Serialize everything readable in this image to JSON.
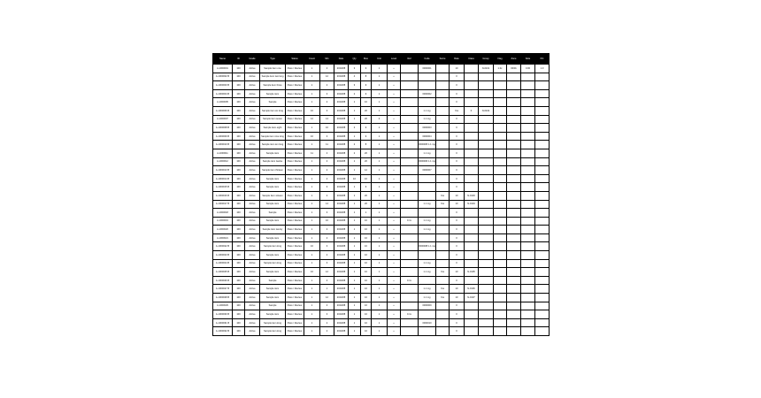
{
  "table": {
    "header": [
      "Name",
      "ID",
      "Grade",
      "Type",
      "Status",
      "Count",
      "Min",
      "Date",
      "Qty",
      "Max",
      "Unit",
      "Level",
      "Ref",
      "Code",
      "Score",
      "Rate",
      "Class",
      "Group",
      "Flag",
      "Zone",
      "Note",
      "Pct"
    ],
    "rows": [
      [
        "A-1000001",
        "100",
        "Active",
        "Sample item one",
        "Pass / Review",
        "1",
        "4",
        "2019/08",
        "3",
        "9",
        "1",
        "+",
        null,
        "0000001",
        null,
        "10",
        null,
        "N-0101",
        "1.0x",
        "00/01",
        "0.00",
        "1.0"
      ],
      [
        "A-1000002 B",
        "100",
        "Active",
        "Sample item two long",
        "Pass / Review",
        "1",
        "12",
        "2019/08",
        "4",
        "8",
        "1",
        "+",
        null,
        null,
        null,
        "0",
        null,
        null,
        null,
        null,
        null,
        null
      ],
      [
        "A-1000003 B",
        "100",
        "Active",
        "Sample item three",
        "Pass / Review",
        "1",
        "2",
        "2019/08",
        "3",
        "9",
        "1",
        "+",
        null,
        null,
        null,
        "0",
        null,
        null,
        null,
        null,
        null,
        null
      ],
      [
        "A-1000004 B",
        "100",
        "Active",
        "Sample item",
        "Pass / Review",
        "1",
        "3",
        "2019/08",
        "2",
        "9",
        "1",
        "+",
        null,
        "0000002",
        null,
        "0",
        null,
        null,
        null,
        null,
        null,
        null
      ],
      [
        "A-1000005",
        "100",
        "Active",
        "Sample",
        "Pass / Review",
        "1",
        "2",
        "2019/08",
        "1",
        "10",
        "1",
        "+",
        null,
        null,
        null,
        "0",
        null,
        null,
        null,
        null,
        null,
        null
      ],
      [
        "A-1000006 B",
        "100",
        "Active",
        "Sample item six long",
        "Pass / Review",
        "10",
        "3",
        "2019/08",
        "1",
        "20",
        "1",
        "+",
        null,
        "1.1 mg",
        null,
        "Yes",
        "0",
        "N-0102",
        null,
        null,
        null,
        null
      ],
      [
        "A-1000007",
        "100",
        "Active",
        "Sample item seven",
        "Pass / Review",
        "12",
        "14",
        "2019/08",
        "1",
        "20",
        "2",
        "+",
        null,
        "1.1 mg",
        null,
        "0",
        null,
        null,
        null,
        null,
        null,
        null
      ],
      [
        "A-1000008 B",
        "100",
        "Active",
        "Sample item eight",
        "Pass / Review",
        "1",
        "10",
        "2019/08",
        "2",
        "9",
        "1",
        "+",
        null,
        "0000003",
        null,
        "0",
        null,
        null,
        null,
        null,
        null,
        null
      ],
      [
        "A-1000009 B",
        "100",
        "Active",
        "Sample item nine long",
        "Pass / Review",
        "10",
        "3",
        "2019/08",
        "1",
        "9",
        "1",
        "+",
        null,
        "0000004",
        null,
        "0",
        null,
        null,
        null,
        null,
        null,
        null
      ],
      [
        "A-1000010 B",
        "100",
        "Active",
        "Sample item ten long",
        "Pass / Review",
        "1",
        "11",
        "2019/08",
        "2",
        "8",
        "1",
        "+",
        null,
        "0000005 1.1 mg",
        null,
        "0",
        null,
        null,
        null,
        null,
        null,
        null
      ],
      [
        "A-1000011",
        "100",
        "Active",
        "Sample item",
        "Pass / Review",
        "11",
        "4",
        "2019/08",
        "2",
        "20",
        "1",
        "+",
        null,
        "1.1 mg",
        null,
        "0",
        null,
        null,
        null,
        null,
        null,
        null
      ],
      [
        "A-1000012",
        "100",
        "Active",
        "Sample item twelve",
        "Pass / Review",
        "1",
        "4",
        "2019/08",
        "1",
        "20",
        "1",
        "+",
        null,
        "0000006 1.1 mg",
        null,
        "0",
        null,
        null,
        null,
        null,
        null,
        null
      ],
      [
        "A-1000013 B",
        "100",
        "Active",
        "Sample item thirteen",
        "Pass / Review",
        "1",
        "2",
        "2019/08",
        "1",
        "12",
        "1",
        "+",
        null,
        "0000007",
        null,
        "0",
        null,
        null,
        null,
        null,
        null,
        null
      ],
      [
        "A-1000014 B",
        "100",
        "Active",
        "Sample item",
        "Pass / Review",
        "1",
        "4",
        "2019/08",
        "10",
        "10",
        "1",
        "+",
        null,
        null,
        null,
        "0",
        null,
        null,
        null,
        null,
        null,
        null
      ],
      [
        "A-1000015 B",
        "100",
        "Active",
        "Sample item",
        "Pass / Review",
        "1",
        "3",
        "2019/08",
        "1",
        "9",
        "1",
        "+",
        null,
        null,
        null,
        "0",
        null,
        null,
        null,
        null,
        null,
        null
      ],
      [
        "A-1000016 B",
        "100",
        "Active",
        "Sample item sixteen",
        "Pass / Review",
        "1",
        "2",
        "2019/08",
        "1",
        "20",
        "1",
        "+",
        null,
        null,
        "Yes",
        "10",
        "N-0103",
        null,
        null,
        null,
        null,
        null
      ],
      [
        "A-1000017 B",
        "100",
        "Active",
        "Sample item",
        "Pass / Review",
        "1",
        "14",
        "2019/08",
        "1",
        "20",
        "1",
        "+",
        null,
        "1.1 mg",
        "Yes",
        "10",
        "N-0104",
        null,
        null,
        null,
        null,
        null
      ],
      [
        "A-1000018",
        "100",
        "Active",
        "Sample",
        "Pass / Review",
        "1",
        "3",
        "2019/08",
        "1",
        "1",
        "1",
        "+",
        null,
        null,
        null,
        "0",
        null,
        null,
        null,
        null,
        null,
        null
      ],
      [
        "A-1000019",
        "100",
        "Active",
        "Sample item",
        "Pass / Review",
        "1",
        "10",
        "2019/08",
        "1",
        "10",
        "1",
        "+",
        "0.1x",
        "1.1 mg",
        null,
        "0",
        null,
        null,
        null,
        null,
        null,
        null
      ],
      [
        "A-1000020",
        "100",
        "Active",
        "Sample item twenty",
        "Pass / Review",
        "1",
        "2",
        "2019/08",
        "1",
        "10",
        "1",
        "+",
        null,
        "1.1 mg",
        null,
        "0",
        null,
        null,
        null,
        null,
        null,
        null
      ],
      [
        "A-1000021",
        "100",
        "Active",
        "Sample item",
        "Pass / Review",
        "1",
        "4",
        "2019/08",
        "1",
        "10",
        "1",
        "+",
        null,
        null,
        null,
        "0",
        null,
        null,
        null,
        null,
        null,
        null
      ],
      [
        "A-1000022 B",
        "100",
        "Active",
        "Sample item long",
        "Pass / Review",
        "10",
        "3",
        "2019/08",
        "1",
        "10",
        "1",
        "+",
        null,
        "0000008 1.1 mg",
        null,
        "0",
        null,
        null,
        null,
        null,
        null,
        null
      ],
      [
        "A-1000023 B",
        "100",
        "Active",
        "Sample item",
        "Pass / Review",
        "1",
        "2",
        "2019/08",
        "1",
        "10",
        "1",
        "+",
        null,
        null,
        null,
        "0",
        null,
        null,
        null,
        null,
        null,
        null
      ],
      [
        "A-1000024 B",
        "100",
        "Active",
        "Sample item long",
        "Pass / Review",
        "1",
        "3",
        "2019/08",
        "1",
        "10",
        "1",
        "+",
        null,
        "1.1 mg",
        null,
        "0",
        null,
        null,
        null,
        null,
        null,
        null
      ],
      [
        "A-1000025 B",
        "100",
        "Active",
        "Sample item",
        "Pass / Review",
        "10",
        "12",
        "2019/08",
        "1",
        "10",
        "1",
        "+",
        null,
        "1.1 mg",
        "Yes",
        "10",
        "N-0105",
        null,
        null,
        null,
        null,
        null
      ],
      [
        "A-1000026 B",
        "100",
        "Active",
        "Sample",
        "Pass / Review",
        "1",
        "4",
        "2019/08",
        "1",
        "10",
        "1",
        "+",
        "0.1x",
        null,
        null,
        "0",
        null,
        null,
        null,
        null,
        null,
        null
      ],
      [
        "A-1000027 B",
        "100",
        "Active",
        "Sample item",
        "Pass / Review",
        "1",
        "1",
        "2019/08",
        "1",
        "10",
        "1",
        "+",
        null,
        "1.1 mg",
        "Yes",
        "10",
        "N-0106",
        null,
        null,
        null,
        null,
        null
      ],
      [
        "A-1000028 B",
        "100",
        "Active",
        "Sample item",
        "Pass / Review",
        "1",
        "12",
        "2019/08",
        "1",
        "10",
        "1",
        "+",
        null,
        "1.1 mg",
        "Yes",
        "10",
        "N-0107",
        null,
        null,
        null,
        null,
        null
      ],
      [
        "A-1000029",
        "100",
        "Active",
        "Sample",
        "Pass / Review",
        "1",
        "4",
        "2019/08",
        "1",
        "10",
        "1",
        "+",
        null,
        "0000009",
        null,
        "0",
        null,
        null,
        null,
        null,
        null,
        null
      ],
      [
        "A-1000030 B",
        "100",
        "Active",
        "Sample item",
        "Pass / Review",
        "1",
        "3",
        "2019/08",
        "1",
        "10",
        "1",
        "+",
        "0.1x",
        null,
        null,
        "0",
        null,
        null,
        null,
        null,
        null,
        null
      ],
      [
        "A-1000031 B",
        "100",
        "Active",
        "Sample item long",
        "Pass / Review",
        "1",
        "2",
        "2019/08",
        "1",
        "10",
        "1",
        "+",
        null,
        "0000010",
        null,
        "0",
        null,
        null,
        null,
        null,
        null,
        null
      ],
      [
        "A-1000032 B",
        "100",
        "Active",
        "Sample item long",
        "Pass / Review",
        "1",
        "4",
        "2019/08",
        "1",
        "10",
        "1",
        "+",
        null,
        null,
        null,
        "0",
        null,
        null,
        null,
        null,
        null,
        null
      ]
    ]
  }
}
